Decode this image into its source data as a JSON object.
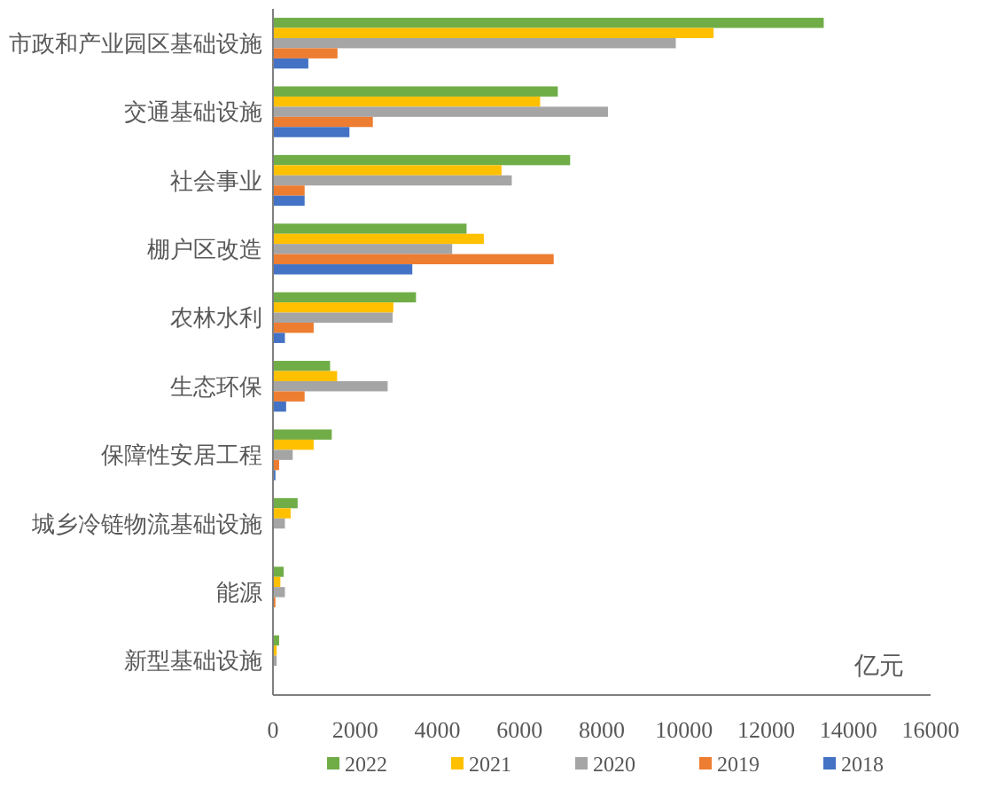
{
  "chart_data": {
    "type": "bar",
    "orientation": "horizontal",
    "xlabel": "亿元",
    "categories": [
      "市政和产业园区基础设施",
      "交通基础设施",
      "社会事业",
      "棚户区改造",
      "农林水利",
      "生态环保",
      "保障性安居工程",
      "城乡冷链物流基础设施",
      "能源",
      "新型基础设施"
    ],
    "series": [
      {
        "name": "2022",
        "color": "#70ad47",
        "values": [
          13400,
          6930,
          7230,
          4710,
          3480,
          1390,
          1430,
          600,
          260,
          150
        ]
      },
      {
        "name": "2021",
        "color": "#ffc000",
        "values": [
          10720,
          6500,
          5560,
          5130,
          2930,
          1560,
          990,
          430,
          180,
          90
        ]
      },
      {
        "name": "2020",
        "color": "#a5a5a5",
        "values": [
          9800,
          8150,
          5810,
          4360,
          2910,
          2790,
          480,
          290,
          290,
          90
        ]
      },
      {
        "name": "2019",
        "color": "#ed7d31",
        "values": [
          1570,
          2430,
          770,
          6830,
          990,
          770,
          150,
          0,
          60,
          null
        ]
      },
      {
        "name": "2018",
        "color": "#4472c4",
        "values": [
          860,
          1860,
          770,
          3390,
          290,
          320,
          60,
          0,
          null,
          20
        ]
      }
    ],
    "xlim": [
      0,
      16000
    ],
    "xticks": [
      0,
      2000,
      4000,
      6000,
      8000,
      10000,
      12000,
      14000,
      16000
    ],
    "grid": false,
    "legend": "bottom"
  }
}
